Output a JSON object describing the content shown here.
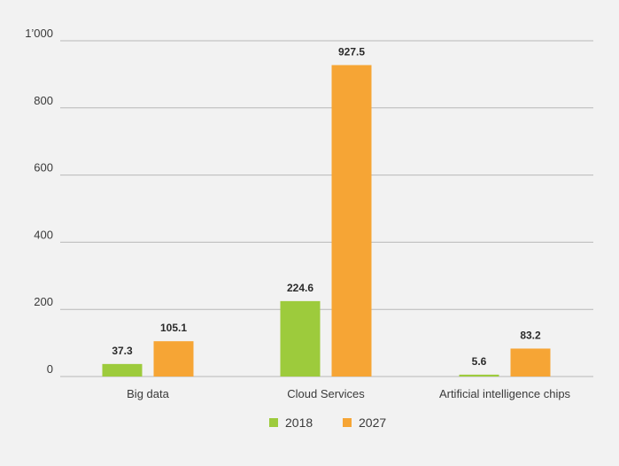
{
  "chart_data": {
    "type": "bar",
    "categories": [
      "Big data",
      "Cloud Services",
      "Artificial intelligence chips"
    ],
    "series": [
      {
        "name": "2018",
        "values": [
          37.3,
          224.6,
          5.6
        ],
        "labels": [
          "37.3",
          "224.6",
          "5.6"
        ],
        "color": "#9dcb3c"
      },
      {
        "name": "2027",
        "values": [
          105.1,
          927.5,
          83.2
        ],
        "labels": [
          "105.1",
          "927.5",
          "83.2"
        ],
        "color": "#f6a535"
      }
    ],
    "yticks": [
      0,
      200,
      400,
      600,
      800,
      1000
    ],
    "ytick_labels": [
      "0",
      "200",
      "400",
      "600",
      "800",
      "1’000"
    ],
    "ylim": [
      0,
      1000
    ],
    "grid": true,
    "gridline_color": "#b8b8b8",
    "legend_position": "bottom-center"
  }
}
